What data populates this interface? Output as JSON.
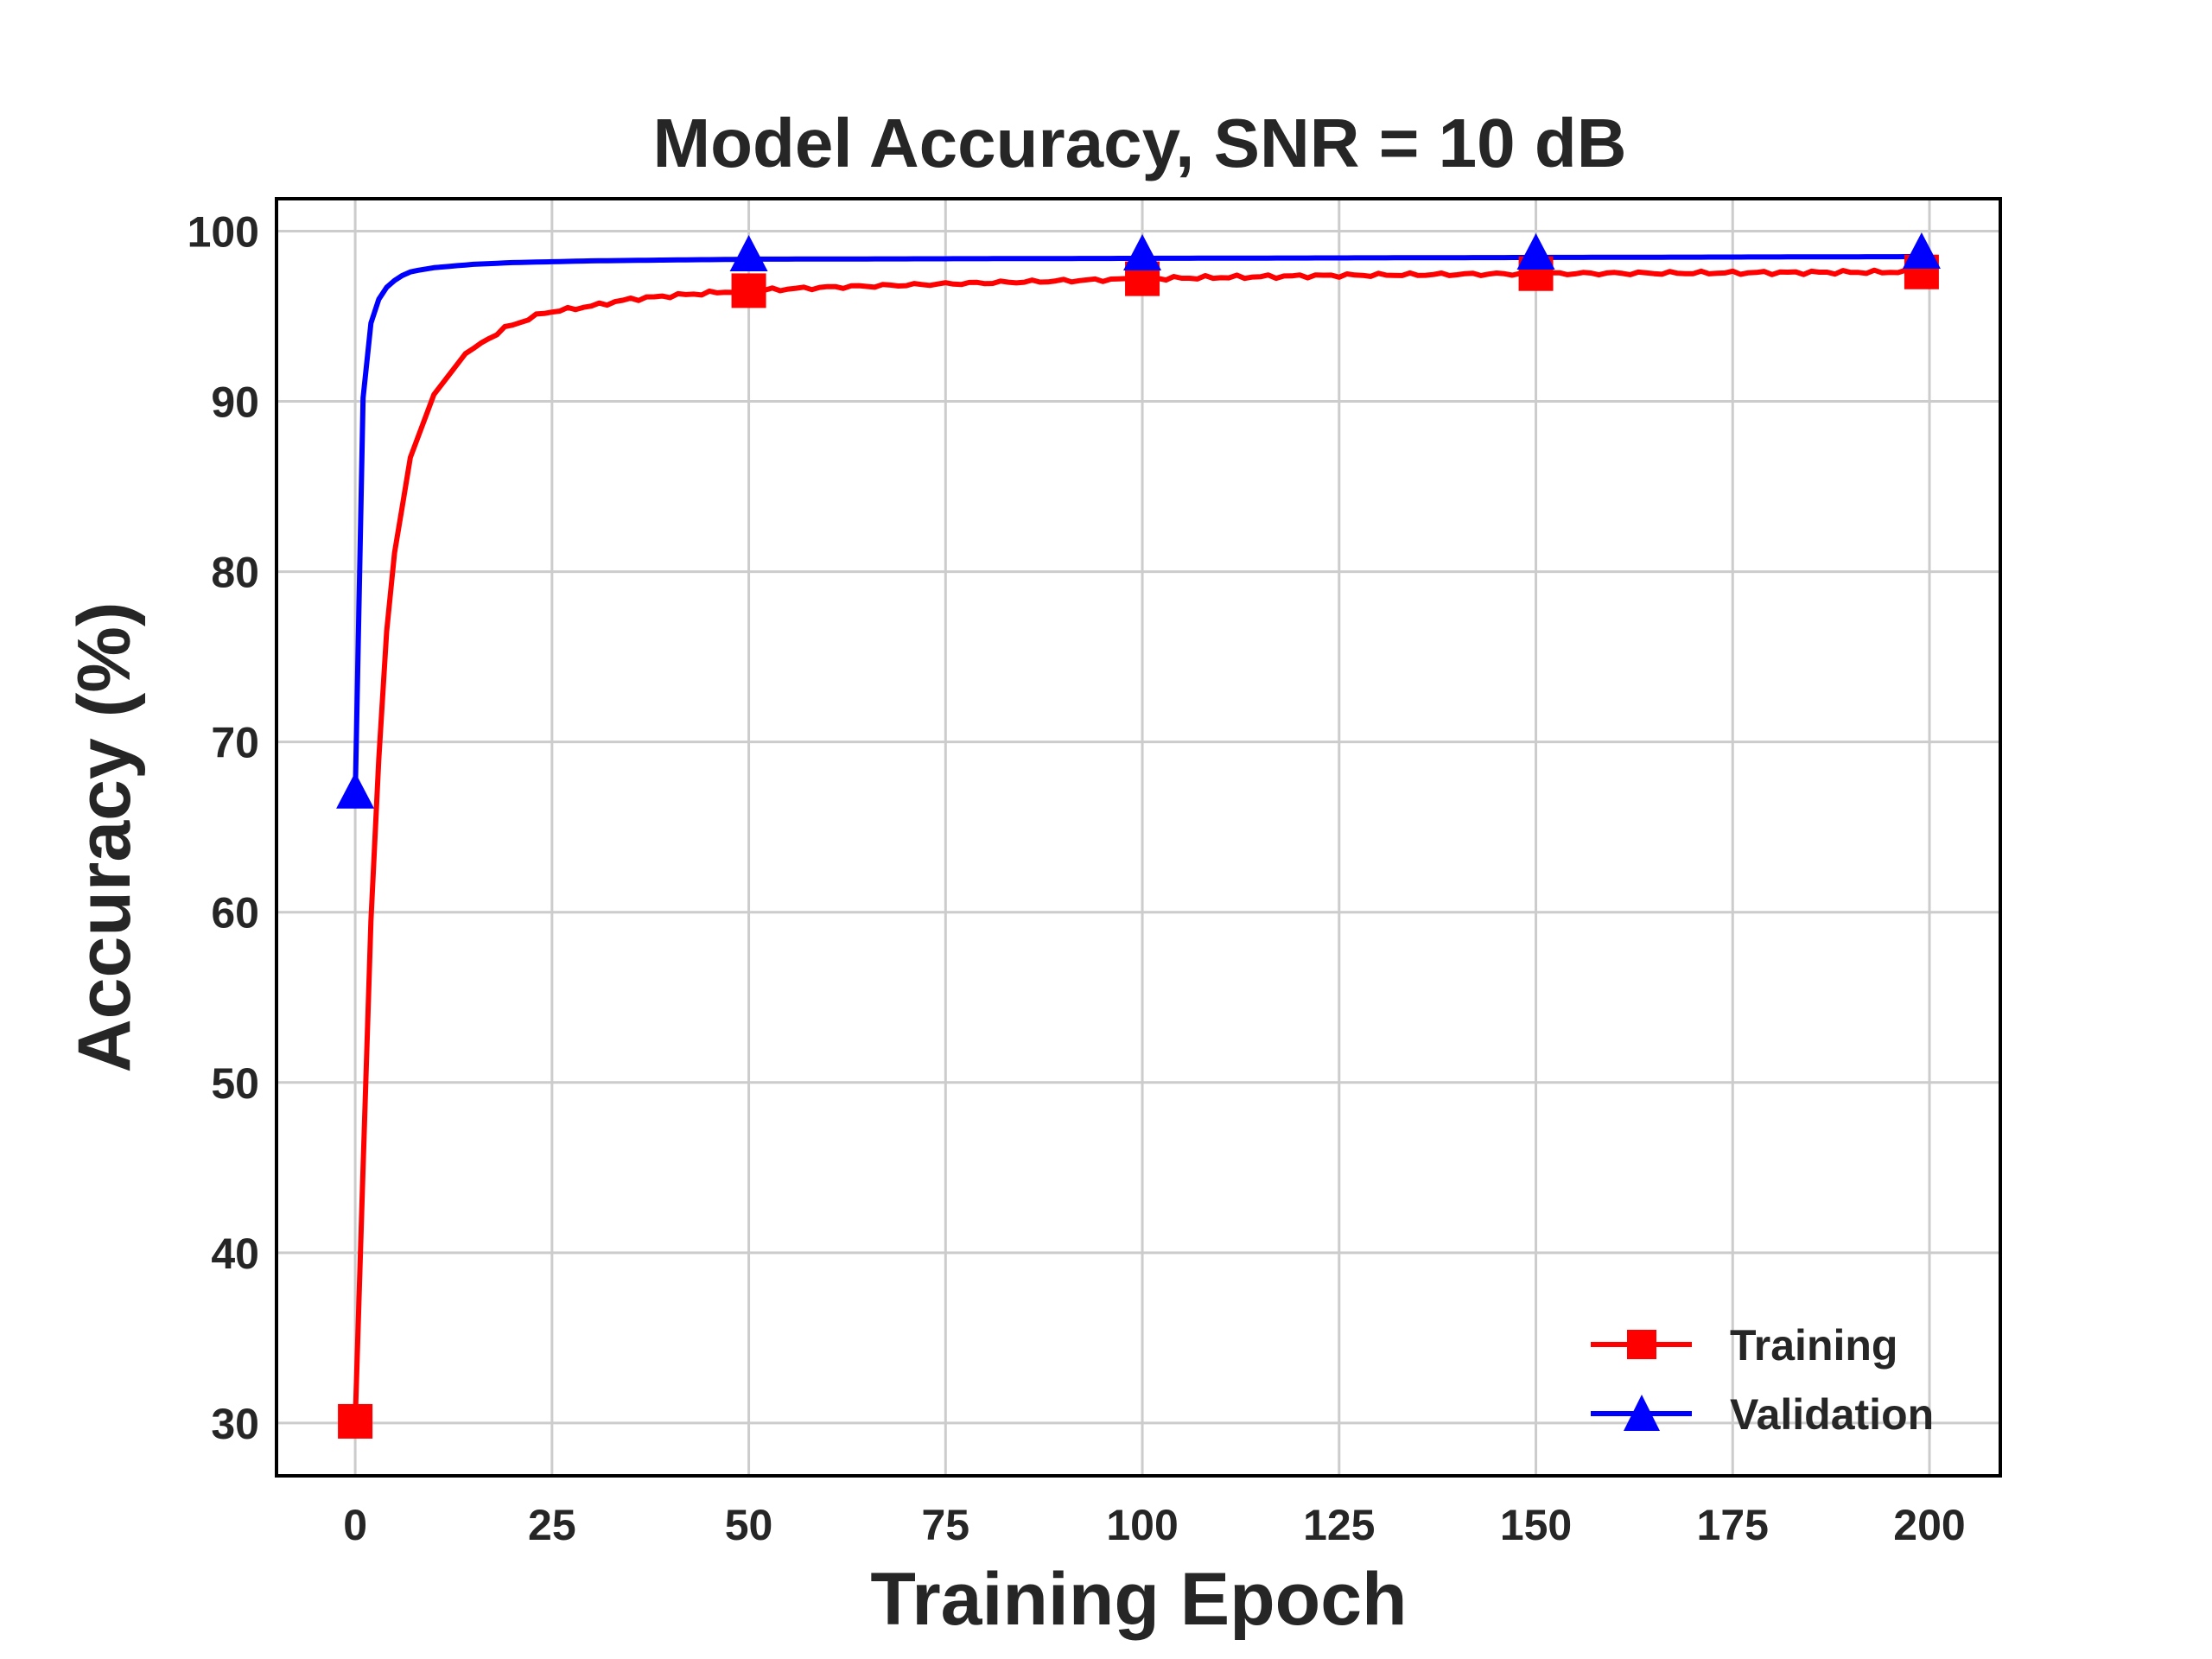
{
  "chart_data": {
    "type": "line",
    "title": "Model Accuracy, SNR = 10 dB",
    "xlabel": "Training Epoch",
    "ylabel": "Accuracy (%)",
    "xlim": [
      -10,
      209
    ],
    "ylim": [
      26.9,
      101.9
    ],
    "xticks": [
      0,
      25,
      50,
      75,
      100,
      125,
      150,
      175,
      200
    ],
    "yticks": [
      30,
      40,
      50,
      60,
      70,
      80,
      90,
      100
    ],
    "grid": true,
    "legend_position": "lower-right",
    "series": [
      {
        "name": "Training",
        "color": "#ff0000",
        "marker": "square",
        "marker_epochs": [
          0,
          50,
          100,
          150,
          199
        ],
        "x": [
          0,
          1,
          2,
          3,
          4,
          5,
          7,
          10,
          14,
          19,
          24,
          30,
          35,
          40,
          46,
          50,
          60,
          75,
          100,
          125,
          150,
          175,
          199
        ],
        "y": [
          30.1,
          45.0,
          59.5,
          69.0,
          76.5,
          81.1,
          86.7,
          90.4,
          92.8,
          94.3,
          95.2,
          95.6,
          96.0,
          96.2,
          96.4,
          96.5,
          96.7,
          96.9,
          97.2,
          97.4,
          97.5,
          97.55,
          97.6
        ]
      },
      {
        "name": "Validation",
        "color": "#0000ff",
        "marker": "triangle",
        "marker_epochs": [
          0,
          50,
          100,
          150,
          199
        ],
        "x": [
          0,
          1,
          2,
          3,
          4,
          5,
          6,
          7,
          8,
          10,
          15,
          20,
          30,
          50,
          100,
          150,
          199
        ],
        "y": [
          66.8,
          90.2,
          94.6,
          96.0,
          96.7,
          97.1,
          97.4,
          97.6,
          97.7,
          97.85,
          98.05,
          98.15,
          98.25,
          98.35,
          98.4,
          98.45,
          98.5
        ]
      }
    ]
  }
}
